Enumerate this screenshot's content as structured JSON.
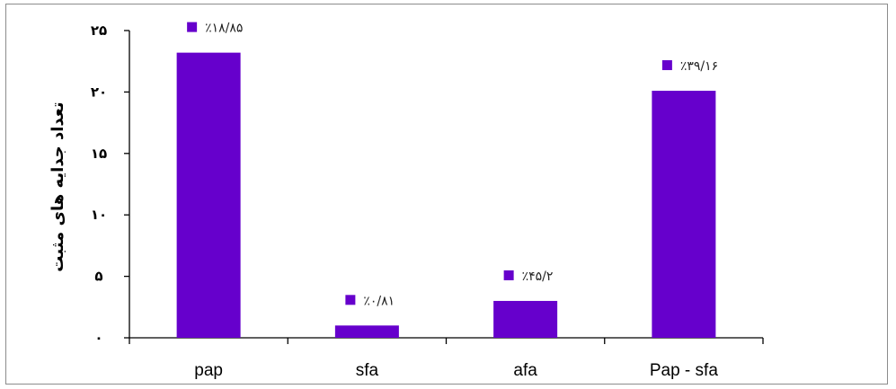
{
  "chart_data": {
    "type": "bar",
    "categories": [
      "pap",
      "sfa",
      "afa",
      "Pap - sfa"
    ],
    "values": [
      23.2,
      1.0,
      3.0,
      20.1
    ],
    "data_labels": [
      "٪۱۸/۸۵",
      "٪۰/۸۱",
      "٪۴۵/۲",
      "٪۳۹/۱۶"
    ],
    "ylabel": "تعداد جدایه های مثبت",
    "xlabel": "",
    "title": "",
    "ylim": [
      0,
      25
    ],
    "yticks": [
      0,
      5,
      10,
      15,
      20,
      25
    ],
    "ytick_labels": [
      "۰",
      "۵",
      "۱۰",
      "۱۵",
      "۲۰",
      "۲۵"
    ],
    "grid": false,
    "legend": "none",
    "colors": {
      "bar": "#6600cc",
      "marker": "#6600cc",
      "axis": "#000000"
    }
  }
}
